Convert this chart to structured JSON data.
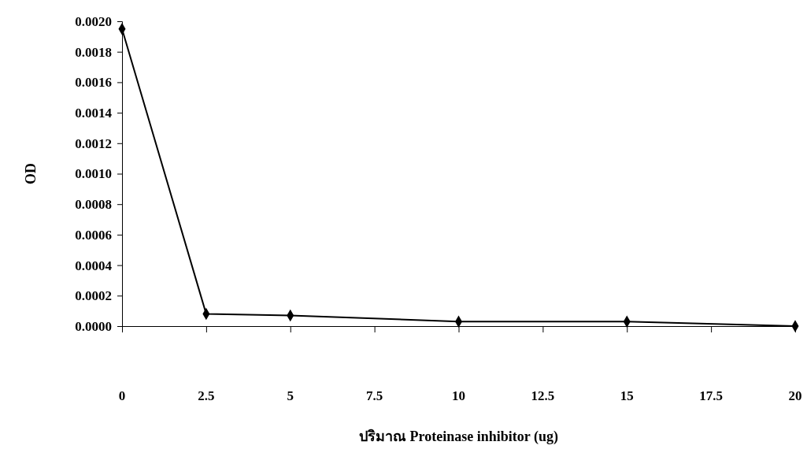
{
  "chart_data": {
    "type": "line",
    "xlabel": "ปริมาณ Proteinase inhibitor (ug)",
    "ylabel": "OD",
    "x": [
      0,
      2.5,
      5,
      10,
      15,
      20
    ],
    "series": [
      {
        "color": "#000000",
        "values": [
          0.00195,
          8e-05,
          7e-05,
          3e-05,
          3e-05,
          0.0
        ]
      }
    ],
    "xlim": [
      0,
      20
    ],
    "xticks": [
      0,
      2.5,
      5,
      7.5,
      10,
      12.5,
      15,
      17.5,
      20
    ],
    "ylim": [
      0,
      0.002
    ],
    "yticks": [
      {
        "value": 0,
        "label": "0.0000"
      },
      {
        "value": 0.0002,
        "label": "0.0002"
      },
      {
        "value": 0.0004,
        "label": "0.0004"
      },
      {
        "value": 0.0006,
        "label": "0.0006"
      },
      {
        "value": 0.0008,
        "label": "0.0008"
      },
      {
        "value": 0.001,
        "label": "0.0010"
      },
      {
        "value": 0.0012,
        "label": "0.0012"
      },
      {
        "value": 0.0014,
        "label": "0.0014"
      },
      {
        "value": 0.0016,
        "label": "0.0016"
      },
      {
        "value": 0.0018,
        "label": "0.0018"
      },
      {
        "value": 0.002,
        "label": "0.0020"
      }
    ],
    "grid": false,
    "marker": "diamond",
    "line_style": "solid"
  }
}
